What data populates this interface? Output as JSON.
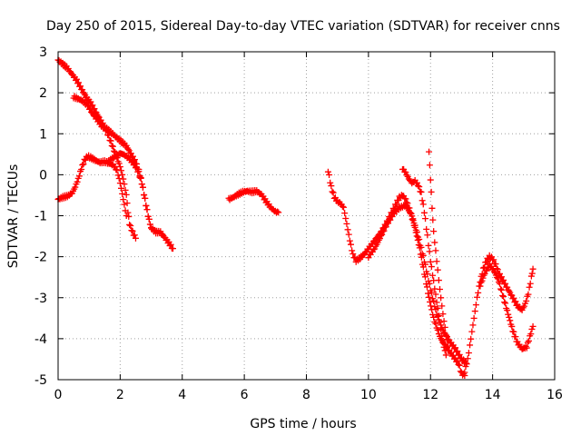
{
  "chart_data": {
    "type": "scatter",
    "title": "Day 250 of 2015, Sidereal Day-to-day VTEC variation (SDTVAR) for receiver cnns",
    "xlabel": "GPS time / hours",
    "ylabel": "SDTVAR / TECUs",
    "xlim": [
      0,
      16
    ],
    "ylim": [
      -5,
      3
    ],
    "xticks": [
      "0",
      "2",
      "4",
      "6",
      "8",
      "10",
      "12",
      "14",
      "16"
    ],
    "yticks": [
      "-5",
      "-4",
      "-3",
      "-2",
      "-1",
      "0",
      "1",
      "2",
      "3"
    ],
    "grid": true,
    "grid_style": "dotted",
    "marker": "plus",
    "series_color": "#ff0000",
    "series": [
      {
        "segments": [
          [
            [
              0.0,
              2.8
            ],
            [
              0.15,
              2.7
            ],
            [
              0.3,
              2.6
            ],
            [
              0.45,
              2.45
            ],
            [
              0.6,
              2.3
            ],
            [
              0.75,
              2.1
            ],
            [
              0.9,
              1.9
            ],
            [
              1.05,
              1.75
            ],
            [
              1.2,
              1.55
            ],
            [
              1.35,
              1.35
            ],
            [
              1.5,
              1.15
            ],
            [
              1.6,
              1.0
            ],
            [
              1.7,
              0.8
            ],
            [
              1.8,
              0.6
            ],
            [
              1.9,
              0.4
            ],
            [
              2.0,
              0.2
            ],
            [
              2.1,
              -0.1
            ],
            [
              2.2,
              -0.5
            ],
            [
              2.25,
              -0.9
            ],
            [
              2.3,
              -1.2
            ],
            [
              2.4,
              -1.4
            ],
            [
              2.5,
              -1.55
            ]
          ],
          [
            [
              0.5,
              1.9
            ],
            [
              0.65,
              1.85
            ],
            [
              0.8,
              1.8
            ],
            [
              0.95,
              1.7
            ],
            [
              1.1,
              1.5
            ],
            [
              1.25,
              1.35
            ],
            [
              1.4,
              1.2
            ],
            [
              1.6,
              1.1
            ],
            [
              1.75,
              1.0
            ],
            [
              1.9,
              0.9
            ],
            [
              2.05,
              0.8
            ],
            [
              2.2,
              0.7
            ],
            [
              2.35,
              0.5
            ],
            [
              2.5,
              0.3
            ],
            [
              2.6,
              0.1
            ],
            [
              2.7,
              -0.2
            ],
            [
              2.8,
              -0.6
            ],
            [
              2.9,
              -1.0
            ],
            [
              3.0,
              -1.3
            ],
            [
              3.15,
              -1.4
            ],
            [
              3.3,
              -1.4
            ],
            [
              3.45,
              -1.55
            ],
            [
              3.6,
              -1.7
            ],
            [
              3.7,
              -1.8
            ]
          ],
          [
            [
              0.0,
              -0.6
            ],
            [
              0.15,
              -0.55
            ],
            [
              0.3,
              -0.52
            ],
            [
              0.45,
              -0.45
            ],
            [
              0.55,
              -0.3
            ],
            [
              0.65,
              -0.1
            ],
            [
              0.75,
              0.15
            ],
            [
              0.85,
              0.35
            ],
            [
              0.95,
              0.45
            ],
            [
              1.05,
              0.42
            ],
            [
              1.2,
              0.35
            ],
            [
              1.35,
              0.3
            ],
            [
              1.5,
              0.32
            ],
            [
              1.65,
              0.28
            ],
            [
              1.8,
              0.22
            ],
            [
              1.9,
              0.1
            ],
            [
              2.0,
              -0.2
            ],
            [
              2.1,
              -0.6
            ],
            [
              2.2,
              -1.0
            ]
          ],
          [
            [
              1.6,
              0.3
            ],
            [
              1.75,
              0.4
            ],
            [
              1.9,
              0.48
            ],
            [
              2.0,
              0.52
            ],
            [
              2.1,
              0.5
            ],
            [
              2.2,
              0.45
            ],
            [
              2.3,
              0.38
            ],
            [
              2.4,
              0.3
            ],
            [
              2.5,
              0.2
            ],
            [
              2.6,
              0.05
            ],
            [
              2.7,
              -0.2
            ],
            [
              2.8,
              -0.6
            ],
            [
              2.9,
              -1.0
            ],
            [
              3.0,
              -1.3
            ]
          ],
          [
            [
              5.5,
              -0.6
            ],
            [
              5.65,
              -0.55
            ],
            [
              5.8,
              -0.48
            ],
            [
              5.95,
              -0.42
            ],
            [
              6.1,
              -0.4
            ],
            [
              6.25,
              -0.42
            ],
            [
              6.4,
              -0.4
            ],
            [
              6.55,
              -0.48
            ],
            [
              6.7,
              -0.65
            ],
            [
              6.85,
              -0.8
            ],
            [
              7.0,
              -0.9
            ],
            [
              7.1,
              -0.92
            ]
          ],
          [
            [
              8.7,
              0.1
            ],
            [
              8.8,
              -0.3
            ],
            [
              8.9,
              -0.55
            ],
            [
              9.0,
              -0.65
            ],
            [
              9.1,
              -0.7
            ],
            [
              9.2,
              -0.8
            ],
            [
              9.3,
              -1.2
            ],
            [
              9.4,
              -1.6
            ],
            [
              9.5,
              -1.95
            ],
            [
              9.6,
              -2.1
            ],
            [
              9.7,
              -2.05
            ],
            [
              9.85,
              -1.95
            ],
            [
              10.0,
              -1.8
            ],
            [
              10.2,
              -1.6
            ],
            [
              10.4,
              -1.4
            ],
            [
              10.6,
              -1.15
            ],
            [
              10.8,
              -0.85
            ],
            [
              11.0,
              -0.55
            ],
            [
              11.1,
              -0.5
            ],
            [
              11.2,
              -0.6
            ],
            [
              11.35,
              -0.9
            ],
            [
              11.5,
              -1.3
            ],
            [
              11.65,
              -1.8
            ],
            [
              11.8,
              -2.4
            ],
            [
              11.95,
              -3.0
            ],
            [
              12.1,
              -3.5
            ],
            [
              12.3,
              -3.95
            ],
            [
              12.5,
              -4.2
            ],
            [
              12.7,
              -4.4
            ],
            [
              12.9,
              -4.6
            ],
            [
              13.0,
              -4.85
            ],
            [
              13.1,
              -4.9
            ]
          ],
          [
            [
              10.0,
              -2.0
            ],
            [
              10.2,
              -1.8
            ],
            [
              10.4,
              -1.5
            ],
            [
              10.6,
              -1.2
            ],
            [
              10.8,
              -0.95
            ],
            [
              11.0,
              -0.8
            ],
            [
              11.2,
              -0.75
            ],
            [
              11.4,
              -1.0
            ],
            [
              11.6,
              -1.5
            ],
            [
              11.8,
              -2.1
            ],
            [
              12.0,
              -2.8
            ],
            [
              12.2,
              -3.4
            ],
            [
              12.4,
              -3.8
            ],
            [
              12.6,
              -4.05
            ],
            [
              12.8,
              -4.25
            ],
            [
              13.0,
              -4.5
            ],
            [
              13.15,
              -4.6
            ]
          ],
          [
            [
              11.1,
              0.15
            ],
            [
              11.2,
              0.05
            ],
            [
              11.3,
              -0.1
            ],
            [
              11.4,
              -0.2
            ],
            [
              11.5,
              -0.15
            ],
            [
              11.6,
              -0.25
            ],
            [
              11.7,
              -0.45
            ],
            [
              11.8,
              -0.9
            ],
            [
              11.9,
              -1.5
            ],
            [
              12.0,
              -2.1
            ],
            [
              12.1,
              -2.6
            ],
            [
              12.2,
              -3.1
            ],
            [
              12.3,
              -3.6
            ],
            [
              12.4,
              -4.1
            ],
            [
              12.5,
              -4.4
            ]
          ],
          [
            [
              11.95,
              0.55
            ],
            [
              12.0,
              -0.1
            ],
            [
              12.05,
              -0.8
            ],
            [
              12.1,
              -1.4
            ],
            [
              12.2,
              -2.1
            ],
            [
              12.3,
              -2.8
            ],
            [
              12.4,
              -3.4
            ],
            [
              12.5,
              -3.9
            ],
            [
              12.6,
              -4.3
            ]
          ],
          [
            [
              13.1,
              -4.8
            ],
            [
              13.2,
              -4.5
            ],
            [
              13.3,
              -4.0
            ],
            [
              13.4,
              -3.5
            ],
            [
              13.5,
              -3.0
            ],
            [
              13.6,
              -2.6
            ],
            [
              13.7,
              -2.3
            ],
            [
              13.8,
              -2.1
            ],
            [
              13.9,
              -2.0
            ],
            [
              14.0,
              -2.05
            ],
            [
              14.1,
              -2.2
            ],
            [
              14.2,
              -2.4
            ],
            [
              14.35,
              -2.6
            ],
            [
              14.5,
              -2.8
            ],
            [
              14.65,
              -3.0
            ],
            [
              14.8,
              -3.2
            ],
            [
              14.95,
              -3.3
            ],
            [
              15.05,
              -3.15
            ],
            [
              15.15,
              -2.9
            ],
            [
              15.25,
              -2.5
            ],
            [
              15.3,
              -2.3
            ]
          ],
          [
            [
              13.6,
              -2.7
            ],
            [
              13.75,
              -2.4
            ],
            [
              13.9,
              -2.2
            ],
            [
              14.05,
              -2.35
            ],
            [
              14.2,
              -2.6
            ],
            [
              14.35,
              -3.0
            ],
            [
              14.5,
              -3.4
            ],
            [
              14.65,
              -3.8
            ],
            [
              14.8,
              -4.1
            ],
            [
              14.95,
              -4.25
            ],
            [
              15.1,
              -4.2
            ],
            [
              15.2,
              -3.95
            ],
            [
              15.3,
              -3.7
            ]
          ]
        ]
      }
    ]
  }
}
